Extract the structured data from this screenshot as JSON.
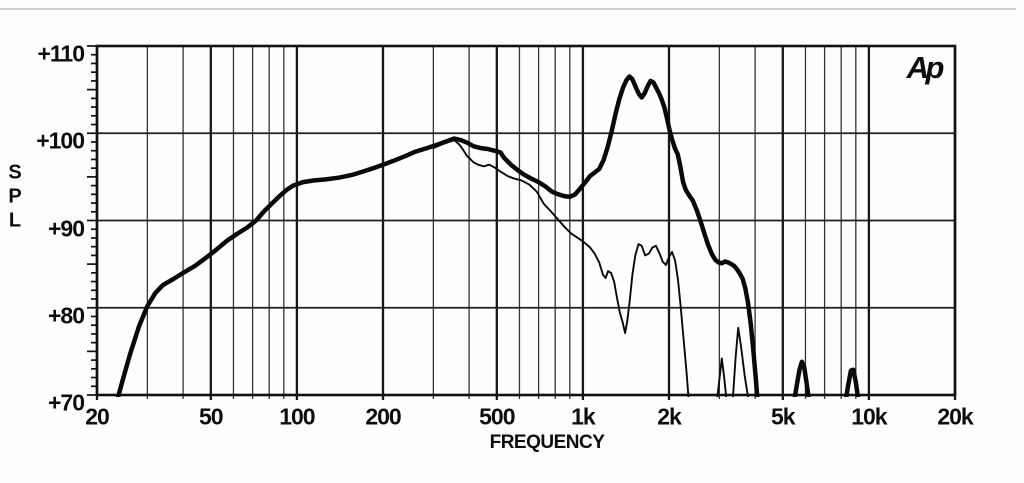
{
  "page": {
    "background": "#fdfdfc",
    "scan_rule_color": "#cfcfcd"
  },
  "logo": {
    "text": "Ap"
  },
  "chart_data": {
    "type": "line",
    "title": "",
    "xlabel": "FREQUENCY",
    "ylabel": "SPL",
    "x_scale": "log",
    "xlim": [
      20,
      20000
    ],
    "ylim": [
      70,
      110
    ],
    "grid": "on",
    "legend": "none",
    "colors": {
      "curve": "#0a0a0a",
      "grid_major": "#161616",
      "grid_minor": "#343434",
      "grid_horizontal": "#1e1e1e",
      "border": "#111111",
      "plot_background": "#fefefe",
      "text": "#0d0d0d"
    },
    "x_major_ticks": [
      {
        "f": 20,
        "label": "20"
      },
      {
        "f": 50,
        "label": "50"
      },
      {
        "f": 100,
        "label": "100"
      },
      {
        "f": 200,
        "label": "200"
      },
      {
        "f": 500,
        "label": "500"
      },
      {
        "f": 1000,
        "label": "1k"
      },
      {
        "f": 2000,
        "label": "2k"
      },
      {
        "f": 5000,
        "label": "5k"
      },
      {
        "f": 10000,
        "label": "10k"
      },
      {
        "f": 20000,
        "label": "20k"
      }
    ],
    "x_minor_gridlines": [
      30,
      40,
      60,
      70,
      80,
      90,
      300,
      400,
      600,
      700,
      800,
      900,
      3000,
      4000,
      6000,
      7000,
      8000,
      9000
    ],
    "y_major_ticks": [
      {
        "db": 110,
        "label": "+110"
      },
      {
        "db": 100,
        "label": "+100"
      },
      {
        "db": 90,
        "label": "+90"
      },
      {
        "db": 80,
        "label": "+80"
      },
      {
        "db": 70,
        "label": "+70"
      }
    ],
    "y_gridlines": [
      100,
      90,
      80
    ],
    "y_minor_tick_step_db": 1,
    "y_medium_tick_step_db": 5,
    "series": [
      {
        "name": "thick-response-curve",
        "stroke_width": 4.5,
        "segments": [
          [
            [
              23.5,
              69.3
            ],
            [
              24.5,
              71.5
            ],
            [
              26,
              74.5
            ],
            [
              28,
              77.8
            ],
            [
              30,
              80.2
            ],
            [
              32,
              81.7
            ],
            [
              34,
              82.6
            ],
            [
              37,
              83.3
            ],
            [
              40,
              84
            ],
            [
              44,
              84.8
            ],
            [
              48,
              85.7
            ],
            [
              52,
              86.6
            ],
            [
              57,
              87.7
            ],
            [
              62,
              88.5
            ],
            [
              67,
              89.2
            ],
            [
              72,
              90
            ],
            [
              77,
              91.1
            ],
            [
              82,
              92
            ],
            [
              87,
              92.8
            ],
            [
              92,
              93.5
            ],
            [
              97,
              94
            ],
            [
              105,
              94.4
            ],
            [
              115,
              94.6
            ],
            [
              125,
              94.7
            ],
            [
              140,
              94.9
            ],
            [
              155,
              95.2
            ],
            [
              170,
              95.6
            ],
            [
              185,
              96
            ],
            [
              200,
              96.4
            ],
            [
              220,
              96.9
            ],
            [
              240,
              97.4
            ],
            [
              260,
              97.9
            ],
            [
              285,
              98.3
            ],
            [
              310,
              98.7
            ],
            [
              335,
              99.1
            ],
            [
              355,
              99.4
            ],
            [
              375,
              99.2
            ],
            [
              395,
              98.9
            ],
            [
              415,
              98.5
            ],
            [
              440,
              98.3
            ],
            [
              465,
              98.2
            ],
            [
              490,
              98
            ],
            [
              515,
              97.8
            ],
            [
              530,
              97.2
            ],
            [
              560,
              96.4
            ],
            [
              590,
              95.8
            ],
            [
              620,
              95.3
            ],
            [
              660,
              94.8
            ],
            [
              700,
              94.4
            ],
            [
              740,
              93.9
            ],
            [
              780,
              93.3
            ],
            [
              820,
              93
            ],
            [
              860,
              92.8
            ],
            [
              900,
              92.7
            ],
            [
              940,
              93
            ],
            [
              980,
              93.7
            ],
            [
              1020,
              94.4
            ],
            [
              1060,
              95.1
            ],
            [
              1100,
              95.5
            ],
            [
              1140,
              95.9
            ],
            [
              1180,
              96.9
            ],
            [
              1220,
              98.4
            ],
            [
              1260,
              100.2
            ],
            [
              1300,
              102.2
            ],
            [
              1340,
              103.9
            ],
            [
              1380,
              105.2
            ],
            [
              1420,
              106.1
            ],
            [
              1455,
              106.5
            ],
            [
              1490,
              106.2
            ],
            [
              1530,
              105.3
            ],
            [
              1570,
              104.5
            ],
            [
              1605,
              104.1
            ],
            [
              1645,
              104.6
            ],
            [
              1685,
              105.4
            ],
            [
              1725,
              106
            ],
            [
              1765,
              105.8
            ],
            [
              1805,
              105.2
            ],
            [
              1845,
              104.6
            ],
            [
              1885,
              103.9
            ],
            [
              1925,
              103
            ],
            [
              1965,
              101.8
            ],
            [
              2005,
              100.5
            ],
            [
              2045,
              99.4
            ],
            [
              2095,
              98.3
            ],
            [
              2145,
              97.6
            ],
            [
              2190,
              96.2
            ],
            [
              2240,
              94.4
            ],
            [
              2290,
              93.5
            ],
            [
              2350,
              92.9
            ],
            [
              2420,
              92.3
            ],
            [
              2500,
              91.2
            ],
            [
              2580,
              89.9
            ],
            [
              2660,
              88.5
            ],
            [
              2740,
              87.2
            ],
            [
              2820,
              86.2
            ],
            [
              2900,
              85.5
            ],
            [
              2980,
              85.2
            ],
            [
              3060,
              85.1
            ],
            [
              3140,
              85.3
            ],
            [
              3220,
              85.2
            ],
            [
              3300,
              85
            ],
            [
              3380,
              84.8
            ],
            [
              3460,
              84.4
            ],
            [
              3540,
              83.9
            ],
            [
              3620,
              83.3
            ],
            [
              3700,
              82.2
            ],
            [
              3780,
              80.5
            ],
            [
              3860,
              78.2
            ],
            [
              3940,
              75.3
            ],
            [
              4020,
              72
            ],
            [
              4080,
              69.3
            ]
          ],
          [
            [
              5480,
              69.3
            ],
            [
              5600,
              71.2
            ],
            [
              5720,
              72.9
            ],
            [
              5830,
              73.8
            ],
            [
              5940,
              73.2
            ],
            [
              6060,
              71.3
            ],
            [
              6180,
              69.3
            ]
          ],
          [
            [
              8280,
              69.3
            ],
            [
              8450,
              71
            ],
            [
              8650,
              72.8
            ],
            [
              8820,
              72.9
            ],
            [
              9000,
              71.5
            ],
            [
              9200,
              69.3
            ]
          ]
        ]
      },
      {
        "name": "thin-response-curve",
        "stroke_width": 1.9,
        "segments": [
          [
            [
              300,
              98.3
            ],
            [
              320,
              98.7
            ],
            [
              340,
              99
            ],
            [
              355,
              99.2
            ],
            [
              370,
              98.7
            ],
            [
              383,
              98
            ],
            [
              393,
              97.4
            ],
            [
              403,
              97.1
            ],
            [
              413,
              96.7
            ],
            [
              430,
              96.4
            ],
            [
              450,
              96.2
            ],
            [
              470,
              96.4
            ],
            [
              490,
              96.1
            ],
            [
              515,
              95.6
            ],
            [
              545,
              95.1
            ],
            [
              575,
              94.8
            ],
            [
              610,
              94.6
            ],
            [
              650,
              94.1
            ],
            [
              690,
              93.3
            ],
            [
              730,
              91.9
            ],
            [
              770,
              91.1
            ],
            [
              810,
              90.3
            ],
            [
              860,
              89.3
            ],
            [
              910,
              88.5
            ],
            [
              960,
              88
            ],
            [
              1010,
              87.5
            ],
            [
              1060,
              86.9
            ],
            [
              1100,
              86.2
            ],
            [
              1140,
              85.2
            ],
            [
              1175,
              83.8
            ],
            [
              1200,
              83.4
            ],
            [
              1225,
              84.2
            ],
            [
              1255,
              84
            ],
            [
              1285,
              83
            ],
            [
              1315,
              81.2
            ],
            [
              1345,
              79.5
            ],
            [
              1375,
              78.4
            ],
            [
              1405,
              77.1
            ],
            [
              1430,
              78.5
            ],
            [
              1460,
              81
            ],
            [
              1490,
              83.8
            ],
            [
              1525,
              86
            ],
            [
              1565,
              87.3
            ],
            [
              1605,
              87.1
            ],
            [
              1650,
              86
            ],
            [
              1700,
              86.2
            ],
            [
              1750,
              86.9
            ],
            [
              1800,
              87.1
            ],
            [
              1850,
              86.3
            ],
            [
              1900,
              85.3
            ],
            [
              1950,
              84.9
            ],
            [
              2000,
              85.8
            ],
            [
              2050,
              86.4
            ],
            [
              2100,
              85.4
            ],
            [
              2150,
              83.2
            ],
            [
              2200,
              80
            ],
            [
              2250,
              76.4
            ],
            [
              2300,
              72.8
            ],
            [
              2345,
              69.3
            ]
          ],
          [
            [
              2940,
              69.3
            ],
            [
              3000,
              71.8
            ],
            [
              3060,
              74.2
            ],
            [
              3120,
              72
            ],
            [
              3180,
              69.3
            ]
          ],
          [
            [
              3340,
              69.3
            ],
            [
              3420,
              74.3
            ],
            [
              3490,
              77.7
            ],
            [
              3570,
              75.6
            ],
            [
              3680,
              72.2
            ],
            [
              3800,
              69.3
            ]
          ]
        ]
      }
    ]
  }
}
